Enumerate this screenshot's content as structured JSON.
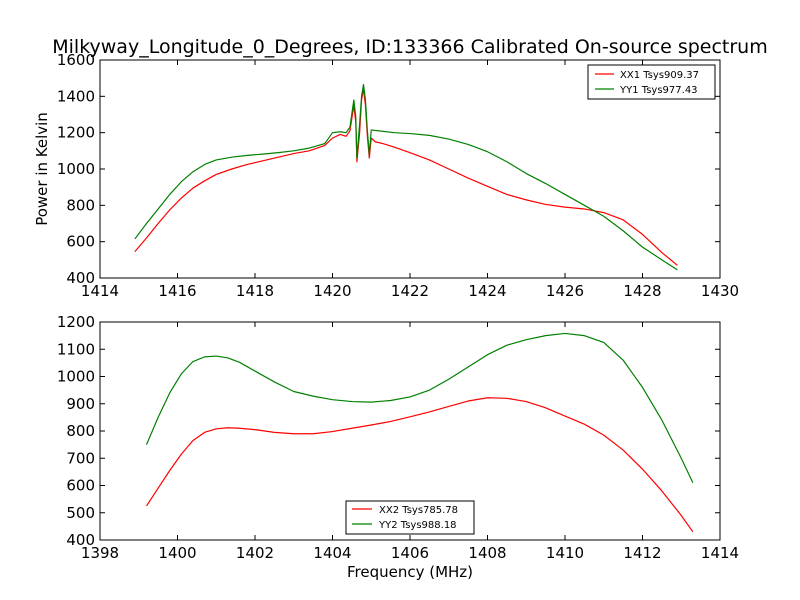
{
  "figure": {
    "title": "Milkyway_Longitude_0_Degrees, ID:133366 Calibrated On-source spectrum",
    "xlabel_bottom": "Frequency (MHz)"
  },
  "chart_data": [
    {
      "type": "line",
      "ylabel": "Power in Kelvin",
      "xlim": [
        1414,
        1430
      ],
      "ylim": [
        400,
        1600
      ],
      "xticks": [
        "1414",
        "1416",
        "1418",
        "1420",
        "1422",
        "1424",
        "1426",
        "1428",
        "1430"
      ],
      "yticks": [
        "400",
        "600",
        "800",
        "1000",
        "1200",
        "1400",
        "1600"
      ],
      "legend_position": "top-right",
      "series": [
        {
          "name": "XX1 Tsys909.37",
          "color": "#ff0000",
          "x": [
            1414.9,
            1415.2,
            1415.5,
            1415.8,
            1416.1,
            1416.4,
            1416.7,
            1417.0,
            1417.4,
            1417.8,
            1418.2,
            1418.6,
            1419.0,
            1419.4,
            1419.8,
            1420.0,
            1420.2,
            1420.35,
            1420.45,
            1420.55,
            1420.6,
            1420.63,
            1420.7,
            1420.75,
            1420.8,
            1420.85,
            1420.9,
            1420.95,
            1421.0,
            1421.1,
            1421.3,
            1421.6,
            1422.0,
            1422.5,
            1423.0,
            1423.5,
            1424.0,
            1424.5,
            1425.0,
            1425.5,
            1426.0,
            1426.5,
            1427.0,
            1427.5,
            1428.0,
            1428.5,
            1428.9
          ],
          "y": [
            545,
            620,
            700,
            775,
            840,
            895,
            935,
            970,
            1000,
            1025,
            1045,
            1065,
            1085,
            1100,
            1130,
            1170,
            1190,
            1180,
            1210,
            1350,
            1260,
            1040,
            1200,
            1380,
            1440,
            1350,
            1180,
            1060,
            1170,
            1150,
            1140,
            1120,
            1090,
            1050,
            1000,
            950,
            905,
            860,
            830,
            805,
            790,
            780,
            760,
            720,
            640,
            540,
            470
          ]
        },
        {
          "name": "YY1 Tsys977.43",
          "color": "#008000",
          "x": [
            1414.9,
            1415.2,
            1415.5,
            1415.8,
            1416.1,
            1416.4,
            1416.7,
            1417.0,
            1417.4,
            1417.8,
            1418.2,
            1418.6,
            1419.0,
            1419.4,
            1419.8,
            1420.0,
            1420.2,
            1420.35,
            1420.45,
            1420.55,
            1420.6,
            1420.63,
            1420.7,
            1420.75,
            1420.8,
            1420.85,
            1420.9,
            1420.95,
            1421.0,
            1421.2,
            1421.6,
            1422.0,
            1422.5,
            1423.0,
            1423.5,
            1424.0,
            1424.5,
            1425.0,
            1425.5,
            1426.0,
            1426.5,
            1427.0,
            1427.5,
            1428.0,
            1428.5,
            1428.9
          ],
          "y": [
            615,
            700,
            780,
            860,
            930,
            985,
            1025,
            1050,
            1065,
            1075,
            1082,
            1090,
            1100,
            1115,
            1140,
            1200,
            1205,
            1200,
            1230,
            1380,
            1290,
            1060,
            1250,
            1400,
            1465,
            1380,
            1210,
            1080,
            1215,
            1210,
            1200,
            1195,
            1185,
            1165,
            1135,
            1095,
            1040,
            975,
            920,
            860,
            800,
            740,
            660,
            570,
            500,
            445
          ]
        }
      ]
    },
    {
      "type": "line",
      "xlabel": "Frequency (MHz)",
      "xlim": [
        1398,
        1414
      ],
      "ylim": [
        400,
        1200
      ],
      "xticks": [
        "1398",
        "1400",
        "1402",
        "1404",
        "1406",
        "1408",
        "1410",
        "1412",
        "1414"
      ],
      "yticks": [
        "400",
        "500",
        "600",
        "700",
        "800",
        "900",
        "1000",
        "1100",
        "1200"
      ],
      "legend_position": "bottom-center",
      "series": [
        {
          "name": "XX2 Tsys785.78",
          "color": "#ff0000",
          "x": [
            1399.2,
            1399.5,
            1399.8,
            1400.1,
            1400.4,
            1400.7,
            1401.0,
            1401.3,
            1401.6,
            1402.0,
            1402.5,
            1403.0,
            1403.5,
            1404.0,
            1404.5,
            1405.0,
            1405.5,
            1406.0,
            1406.5,
            1407.0,
            1407.5,
            1408.0,
            1408.5,
            1409.0,
            1409.5,
            1410.0,
            1410.5,
            1411.0,
            1411.5,
            1412.0,
            1412.5,
            1413.0,
            1413.3
          ],
          "y": [
            525,
            590,
            655,
            715,
            765,
            795,
            808,
            812,
            810,
            805,
            795,
            790,
            790,
            798,
            810,
            822,
            835,
            852,
            870,
            890,
            910,
            922,
            920,
            908,
            885,
            855,
            825,
            785,
            730,
            660,
            580,
            490,
            430
          ]
        },
        {
          "name": "YY2 Tsys988.18",
          "color": "#008000",
          "x": [
            1399.2,
            1399.5,
            1399.8,
            1400.1,
            1400.4,
            1400.7,
            1401.0,
            1401.3,
            1401.6,
            1402.0,
            1402.5,
            1403.0,
            1403.5,
            1404.0,
            1404.5,
            1405.0,
            1405.5,
            1406.0,
            1406.5,
            1407.0,
            1407.5,
            1408.0,
            1408.5,
            1409.0,
            1409.5,
            1410.0,
            1410.5,
            1411.0,
            1411.5,
            1412.0,
            1412.5,
            1413.0,
            1413.3
          ],
          "y": [
            750,
            850,
            940,
            1010,
            1055,
            1072,
            1075,
            1068,
            1052,
            1020,
            980,
            945,
            928,
            915,
            908,
            906,
            912,
            925,
            950,
            990,
            1035,
            1080,
            1115,
            1135,
            1150,
            1158,
            1150,
            1125,
            1060,
            960,
            840,
            700,
            610
          ]
        }
      ]
    }
  ]
}
